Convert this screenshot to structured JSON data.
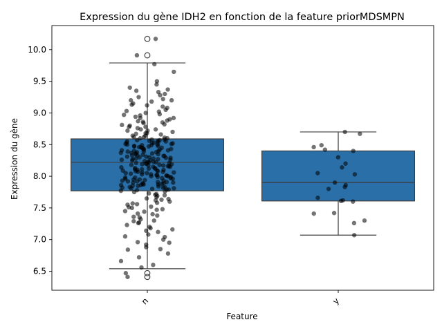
{
  "chart_data": {
    "type": "box",
    "title": "Expression du gène IDH2 en fonction de la feature priorMDSMPN",
    "xlabel": "Feature",
    "ylabel": "Expression du gène",
    "categories": [
      "n",
      "y"
    ],
    "ylim": [
      6.2,
      10.38
    ],
    "yticks": [
      "6.5",
      "7.0",
      "7.5",
      "8.0",
      "8.5",
      "9.0",
      "9.5",
      "10.0"
    ],
    "grid": false,
    "legend": "none",
    "colors": {
      "box": "#2a6fa8",
      "line": "#3d3d3d",
      "point": "#000000"
    },
    "boxes": [
      {
        "name": "n",
        "q1": 7.77,
        "median": 8.22,
        "q3": 8.59,
        "whisker_low": 6.54,
        "whisker_high": 9.79,
        "outliers": [
          10.17,
          9.91,
          6.47,
          6.41
        ]
      },
      {
        "name": "y",
        "q1": 7.61,
        "median": 7.9,
        "q3": 8.4,
        "whisker_low": 7.07,
        "whisker_high": 8.7,
        "outliers": []
      }
    ],
    "points": [
      {
        "name": "n",
        "values": [
          10.17,
          9.91,
          9.77,
          9.65,
          9.5,
          9.45,
          9.4,
          9.37,
          9.33,
          9.3,
          9.28,
          9.25,
          9.22,
          9.2,
          9.18,
          9.15,
          9.13,
          9.1,
          9.08,
          9.05,
          9.03,
          9.0,
          8.98,
          8.96,
          8.94,
          8.92,
          8.9,
          8.88,
          8.86,
          8.84,
          8.82,
          8.8,
          8.78,
          8.76,
          8.74,
          8.72,
          8.7,
          8.68,
          8.66,
          8.64,
          8.62,
          8.6,
          8.58,
          8.57,
          8.56,
          8.55,
          8.54,
          8.53,
          8.52,
          8.51,
          8.5,
          8.49,
          8.48,
          8.47,
          8.46,
          8.45,
          8.44,
          8.43,
          8.42,
          8.41,
          8.4,
          8.39,
          8.38,
          8.37,
          8.36,
          8.35,
          8.34,
          8.33,
          8.32,
          8.31,
          8.3,
          8.29,
          8.28,
          8.27,
          8.26,
          8.25,
          8.24,
          8.23,
          8.22,
          8.21,
          8.2,
          8.19,
          8.18,
          8.17,
          8.16,
          8.15,
          8.14,
          8.13,
          8.12,
          8.11,
          8.1,
          8.09,
          8.08,
          8.07,
          8.06,
          8.05,
          8.04,
          8.03,
          8.02,
          8.01,
          8.0,
          7.99,
          7.98,
          7.97,
          7.96,
          7.95,
          7.94,
          7.93,
          7.92,
          7.91,
          7.9,
          7.89,
          7.88,
          7.87,
          7.86,
          7.85,
          7.84,
          7.83,
          7.82,
          7.81,
          7.8,
          7.79,
          7.78,
          7.77,
          7.75,
          7.73,
          7.71,
          7.69,
          7.67,
          7.65,
          7.62,
          7.6,
          7.58,
          7.55,
          7.52,
          7.5,
          7.47,
          7.44,
          7.41,
          7.38,
          7.35,
          7.32,
          7.29,
          7.26,
          7.23,
          7.2,
          7.16,
          7.12,
          7.08,
          7.04,
          7.0,
          6.96,
          6.92,
          6.88,
          6.84,
          6.78,
          6.72,
          6.66,
          6.6,
          6.56,
          6.47,
          6.41,
          8.55,
          8.5,
          8.45,
          8.4,
          8.35,
          8.3,
          8.25,
          8.2,
          8.15,
          8.1,
          8.05,
          8.0,
          7.95,
          7.9,
          7.85,
          8.62,
          8.58,
          8.52,
          8.48,
          8.42,
          8.38,
          8.32,
          8.28,
          8.22,
          8.18,
          8.12,
          8.08,
          8.02,
          7.98,
          7.92,
          7.88,
          7.82,
          8.72,
          8.68,
          8.64,
          8.6,
          8.56,
          8.53,
          8.49,
          8.46,
          8.43,
          8.39,
          8.36,
          8.33,
          8.29,
          8.26,
          8.23,
          8.19,
          8.16,
          8.13,
          8.09,
          8.06,
          8.03,
          7.99,
          7.96,
          7.93,
          7.89,
          7.86,
          7.83,
          7.79,
          9.35,
          9.2,
          9.02,
          8.92,
          8.85,
          8.78,
          7.72,
          7.64,
          7.56,
          7.48,
          7.4,
          7.3,
          7.18,
          7.05,
          6.95,
          6.85,
          8.81,
          8.74,
          8.67,
          8.61,
          8.57,
          8.51,
          8.47,
          8.41,
          8.37,
          8.31,
          8.27,
          8.21,
          8.17,
          8.11,
          8.07,
          8.01,
          7.97,
          7.91,
          7.87,
          7.81,
          7.76,
          7.7,
          7.63,
          7.57,
          7.51,
          7.45,
          7.36,
          7.27,
          7.14,
          9.12,
          8.97,
          8.87
        ]
      },
      {
        "name": "y",
        "values": [
          8.7,
          8.67,
          8.49,
          8.46,
          8.42,
          8.4,
          8.3,
          8.2,
          8.14,
          8.05,
          8.03,
          7.9,
          7.86,
          7.83,
          7.8,
          7.66,
          7.62,
          7.61,
          7.6,
          7.42,
          7.41,
          7.3,
          7.26,
          7.07
        ]
      }
    ]
  }
}
